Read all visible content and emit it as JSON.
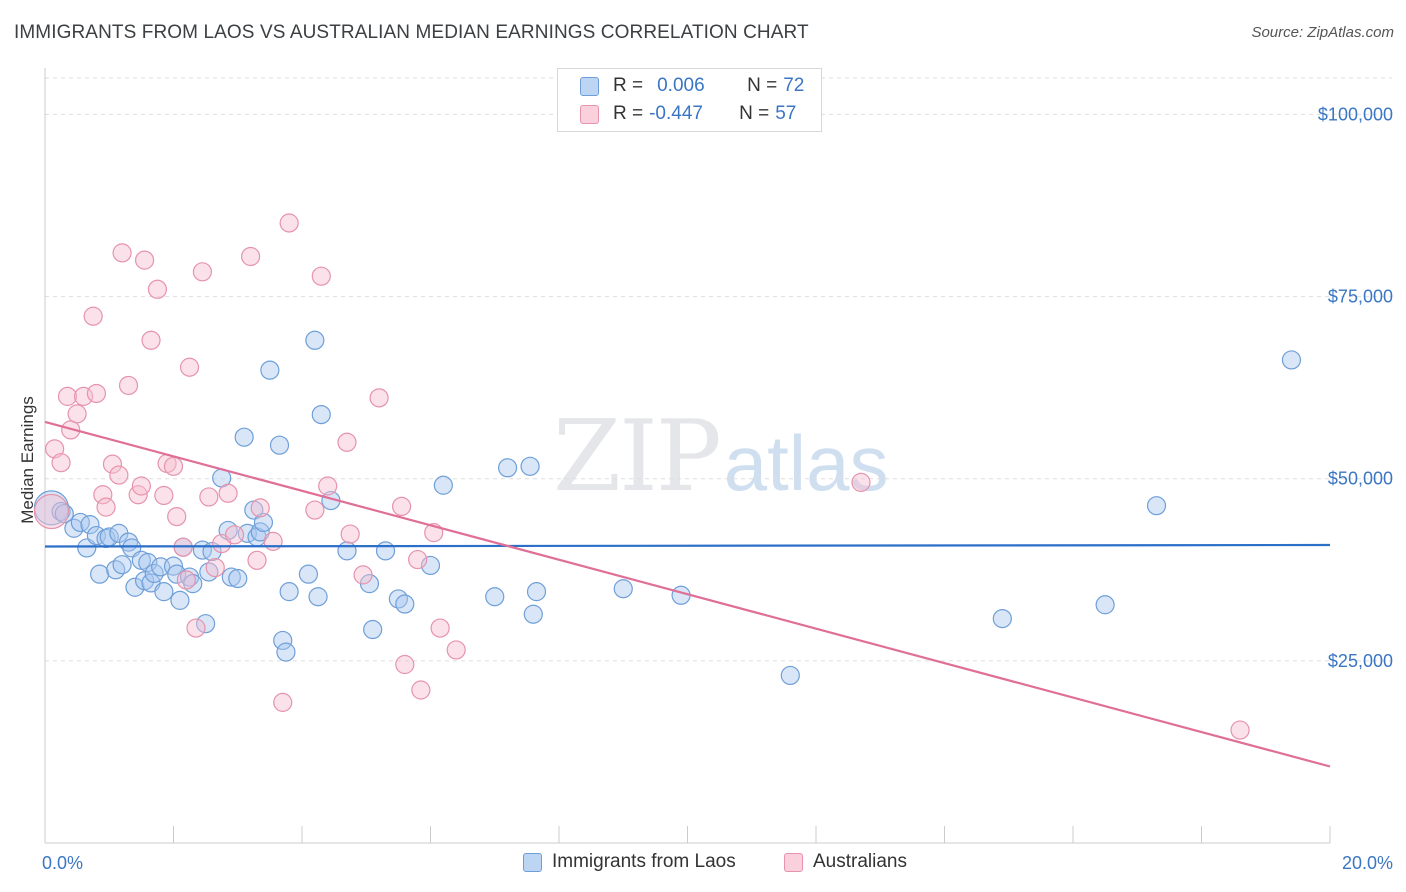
{
  "title": "IMMIGRANTS FROM LAOS VS AUSTRALIAN MEDIAN EARNINGS CORRELATION CHART",
  "source": "Source: ZipAtlas.com",
  "watermark": {
    "zip": "ZIP",
    "atlas": "atlas"
  },
  "legend": {
    "rows": [
      {
        "r_label": "R =",
        "r_value": "0.006",
        "n_label": "N =",
        "n_value": "72"
      },
      {
        "r_label": "R =",
        "r_value": "-0.447",
        "n_label": "N =",
        "n_value": "57"
      }
    ]
  },
  "colors": {
    "blue_fill": "#a9c8ef",
    "blue_stroke": "#6f9fd8",
    "blue_line": "#2c6fc9",
    "pink_fill": "#f6bfd0",
    "pink_stroke": "#e693ad",
    "pink_line": "#e06f98",
    "grid": "#dddddd",
    "tick_text": "#3a76c4"
  },
  "chart_data": {
    "type": "scatter",
    "title": "IMMIGRANTS FROM LAOS VS AUSTRALIAN MEDIAN EARNINGS CORRELATION CHART",
    "xlabel": "",
    "ylabel": "Median Earnings",
    "xlim": [
      0,
      20
    ],
    "ylim": [
      0,
      105000
    ],
    "x_tick_labels": [
      "0.0%",
      "20.0%"
    ],
    "y_ticks": [
      25000,
      50000,
      75000,
      100000
    ],
    "y_tick_labels": [
      "$25,000",
      "$50,000",
      "$75,000",
      "$100,000"
    ],
    "grid": true,
    "legend_position": "top-center",
    "series": [
      {
        "name": "Immigrants from Laos",
        "color": "#a9c8ef",
        "trend": {
          "x": [
            0,
            20
          ],
          "y": [
            40700,
            40900
          ]
        },
        "points": [
          [
            0.1,
            46000
          ],
          [
            0.25,
            45500
          ],
          [
            0.3,
            45200
          ],
          [
            0.45,
            43200
          ],
          [
            0.55,
            44000
          ],
          [
            0.65,
            40500
          ],
          [
            0.7,
            43700
          ],
          [
            0.8,
            42200
          ],
          [
            0.85,
            36900
          ],
          [
            0.95,
            41800
          ],
          [
            1.0,
            42000
          ],
          [
            1.1,
            37500
          ],
          [
            1.15,
            42500
          ],
          [
            1.2,
            38200
          ],
          [
            1.3,
            41300
          ],
          [
            1.35,
            40500
          ],
          [
            1.4,
            35100
          ],
          [
            1.5,
            38800
          ],
          [
            1.55,
            36000
          ],
          [
            1.6,
            38500
          ],
          [
            1.65,
            35700
          ],
          [
            1.7,
            37000
          ],
          [
            1.8,
            37900
          ],
          [
            1.85,
            34500
          ],
          [
            2.0,
            38000
          ],
          [
            2.05,
            36900
          ],
          [
            2.1,
            33300
          ],
          [
            2.15,
            40600
          ],
          [
            2.25,
            36500
          ],
          [
            2.3,
            35600
          ],
          [
            2.45,
            40200
          ],
          [
            2.5,
            30100
          ],
          [
            2.55,
            37200
          ],
          [
            2.6,
            40000
          ],
          [
            2.75,
            50100
          ],
          [
            2.85,
            42900
          ],
          [
            2.9,
            36500
          ],
          [
            3.0,
            36300
          ],
          [
            3.1,
            55700
          ],
          [
            3.15,
            42500
          ],
          [
            3.25,
            45700
          ],
          [
            3.3,
            42000
          ],
          [
            3.35,
            42700
          ],
          [
            3.4,
            44000
          ],
          [
            3.5,
            64900
          ],
          [
            3.65,
            54600
          ],
          [
            3.7,
            27800
          ],
          [
            3.75,
            26200
          ],
          [
            3.8,
            34500
          ],
          [
            4.1,
            36900
          ],
          [
            4.2,
            69000
          ],
          [
            4.25,
            33800
          ],
          [
            4.3,
            58800
          ],
          [
            4.45,
            47000
          ],
          [
            4.7,
            40100
          ],
          [
            5.05,
            35600
          ],
          [
            5.1,
            29300
          ],
          [
            5.3,
            40100
          ],
          [
            5.5,
            33500
          ],
          [
            5.6,
            32800
          ],
          [
            6.0,
            38100
          ],
          [
            6.2,
            49100
          ],
          [
            7.0,
            33800
          ],
          [
            7.2,
            51500
          ],
          [
            7.55,
            51700
          ],
          [
            7.6,
            31400
          ],
          [
            7.65,
            34500
          ],
          [
            9.0,
            34900
          ],
          [
            9.9,
            34000
          ],
          [
            11.6,
            23000
          ],
          [
            14.9,
            30800
          ],
          [
            16.5,
            32700
          ],
          [
            17.3,
            46300
          ],
          [
            19.4,
            66300
          ]
        ]
      },
      {
        "name": "Australians",
        "color": "#f6bfd0",
        "trend": {
          "x": [
            0,
            20
          ],
          "y": [
            57800,
            10500
          ]
        },
        "points": [
          [
            0.1,
            45500
          ],
          [
            0.15,
            54100
          ],
          [
            0.25,
            52200
          ],
          [
            0.35,
            61300
          ],
          [
            0.4,
            56700
          ],
          [
            0.5,
            58900
          ],
          [
            0.6,
            61300
          ],
          [
            0.75,
            72300
          ],
          [
            0.8,
            61700
          ],
          [
            0.9,
            47800
          ],
          [
            0.95,
            46100
          ],
          [
            1.05,
            52000
          ],
          [
            1.15,
            50500
          ],
          [
            1.2,
            81000
          ],
          [
            1.3,
            62800
          ],
          [
            1.45,
            47800
          ],
          [
            1.5,
            49000
          ],
          [
            1.55,
            80000
          ],
          [
            1.65,
            69000
          ],
          [
            1.75,
            76000
          ],
          [
            1.85,
            47700
          ],
          [
            1.9,
            52100
          ],
          [
            2.0,
            51700
          ],
          [
            2.05,
            44800
          ],
          [
            2.15,
            40600
          ],
          [
            2.2,
            36100
          ],
          [
            2.25,
            65300
          ],
          [
            2.35,
            29500
          ],
          [
            2.45,
            78400
          ],
          [
            2.55,
            47500
          ],
          [
            2.65,
            37800
          ],
          [
            2.75,
            41100
          ],
          [
            2.85,
            48000
          ],
          [
            2.95,
            42300
          ],
          [
            3.2,
            80500
          ],
          [
            3.3,
            38800
          ],
          [
            3.35,
            46000
          ],
          [
            3.55,
            41400
          ],
          [
            3.7,
            19300
          ],
          [
            3.8,
            85100
          ],
          [
            4.2,
            45700
          ],
          [
            4.3,
            77800
          ],
          [
            4.4,
            49000
          ],
          [
            4.7,
            55000
          ],
          [
            4.75,
            42400
          ],
          [
            4.95,
            36800
          ],
          [
            5.2,
            61100
          ],
          [
            5.55,
            46200
          ],
          [
            5.6,
            24500
          ],
          [
            5.8,
            38900
          ],
          [
            5.85,
            21000
          ],
          [
            6.05,
            42600
          ],
          [
            6.15,
            29500
          ],
          [
            6.4,
            26500
          ],
          [
            12.7,
            49500
          ],
          [
            18.6,
            15500
          ]
        ]
      }
    ]
  }
}
